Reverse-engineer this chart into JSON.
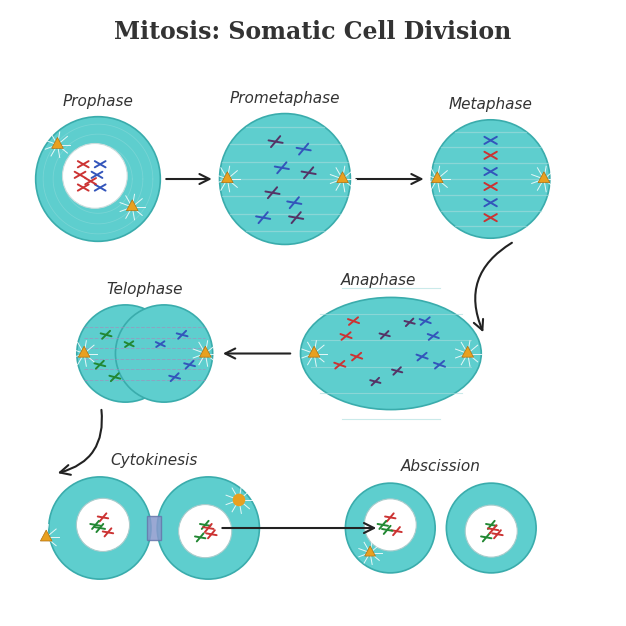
{
  "title": "Mitosis: Somatic Cell Division",
  "title_fontsize": 17,
  "bg_color": "#ffffff",
  "cell_color": "#5ecece",
  "cell_edge_color": "#3aacac",
  "centrosome_color": "#e8a020",
  "chr_red": "#cc3333",
  "chr_blue": "#3355bb",
  "chr_dark": "#553366",
  "chr_green": "#228833",
  "text_color": "#333333",
  "label_fontsize": 11,
  "phases": [
    "Prophase",
    "Prometaphase",
    "Metaphase",
    "Anaphase",
    "Telophase",
    "Cytokinesis",
    "Abscission"
  ],
  "arrow_color": "#222222",
  "spindle_color": "#a0d8d8",
  "furrow_color": "#8899cc"
}
